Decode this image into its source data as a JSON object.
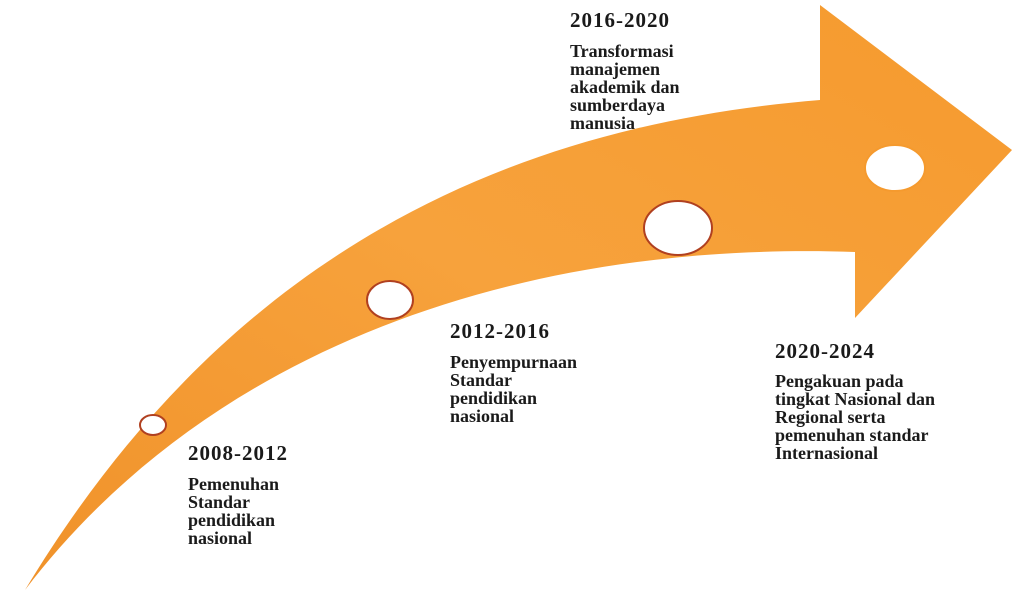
{
  "milestones": [
    {
      "period": "2008-2012",
      "description": [
        "Pemenuhan",
        "Standar",
        "pendidikan",
        "nasional"
      ]
    },
    {
      "period": "2012-2016",
      "description": [
        "Penyempurnaan",
        "Standar",
        "pendidikan",
        "nasional"
      ]
    },
    {
      "period": "2016-2020",
      "description": [
        "Transformasi",
        "manajemen",
        "akademik dan",
        "sumberdaya",
        "manusia"
      ]
    },
    {
      "period": "2020-2024",
      "description": [
        "Pengakuan pada",
        "tingkat Nasional dan",
        "Regional serta",
        "pemenuhan standar",
        "Internasional"
      ]
    }
  ]
}
